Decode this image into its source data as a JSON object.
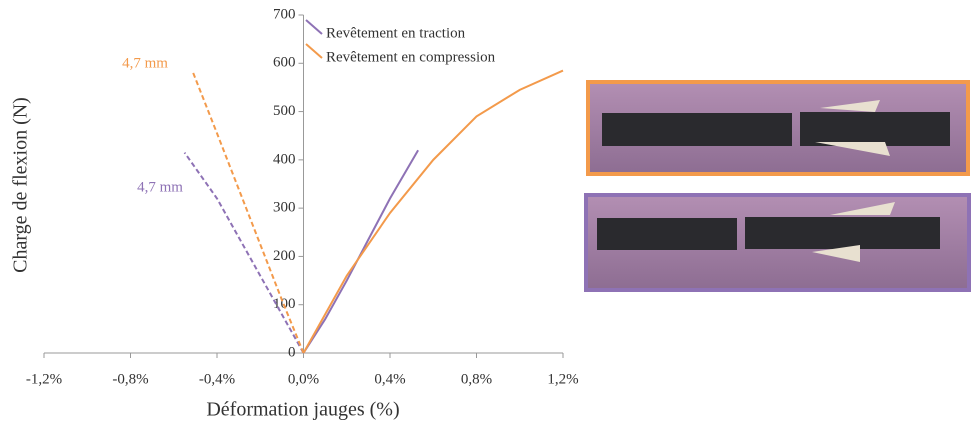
{
  "chart_data": {
    "type": "line",
    "xlabel": "Déformation jauges (%)",
    "ylabel": "Charge de flexion (N)",
    "xlim": [
      -1.2,
      1.2
    ],
    "xticks": [
      {
        "value": -1.2,
        "label": "-1,2%"
      },
      {
        "value": -0.8,
        "label": "-0,8%"
      },
      {
        "value": -0.4,
        "label": "-0,4%"
      },
      {
        "value": 0,
        "label": "0,0%"
      },
      {
        "value": 0.4,
        "label": "0,4%"
      },
      {
        "value": 0.8,
        "label": "0,8%"
      },
      {
        "value": 1.2,
        "label": "1,2%"
      }
    ],
    "ylim": [
      0,
      700
    ],
    "yticks": [
      0,
      100,
      200,
      300,
      400,
      500,
      600,
      700
    ],
    "series": [
      {
        "name": "Revêtement en traction",
        "color": "#8e72b5",
        "dash": false,
        "x": [
          0,
          0.1,
          0.2,
          0.3,
          0.4,
          0.53
        ],
        "values": [
          0,
          70,
          150,
          235,
          320,
          420
        ]
      },
      {
        "name": "Revêtement en compression",
        "color": "#f39a4b",
        "dash": false,
        "x": [
          0,
          0.2,
          0.4,
          0.6,
          0.8,
          1.0,
          1.2
        ],
        "values": [
          0,
          160,
          290,
          400,
          490,
          545,
          585
        ]
      },
      {
        "color": "#8e72b5",
        "dash": true,
        "x": [
          0,
          -0.1,
          -0.2,
          -0.3,
          -0.4,
          -0.55
        ],
        "values": [
          0,
          80,
          160,
          240,
          320,
          415
        ]
      },
      {
        "color": "#f39a4b",
        "dash": true,
        "x": [
          0,
          -0.1,
          -0.2,
          -0.3,
          -0.4,
          -0.51
        ],
        "values": [
          0,
          110,
          225,
          340,
          455,
          580
        ]
      }
    ],
    "annotations": [
      {
        "text": "4,7 mm",
        "color": "#f39a4b"
      },
      {
        "text": "4,7 mm",
        "color": "#8e72b5"
      }
    ]
  }
}
